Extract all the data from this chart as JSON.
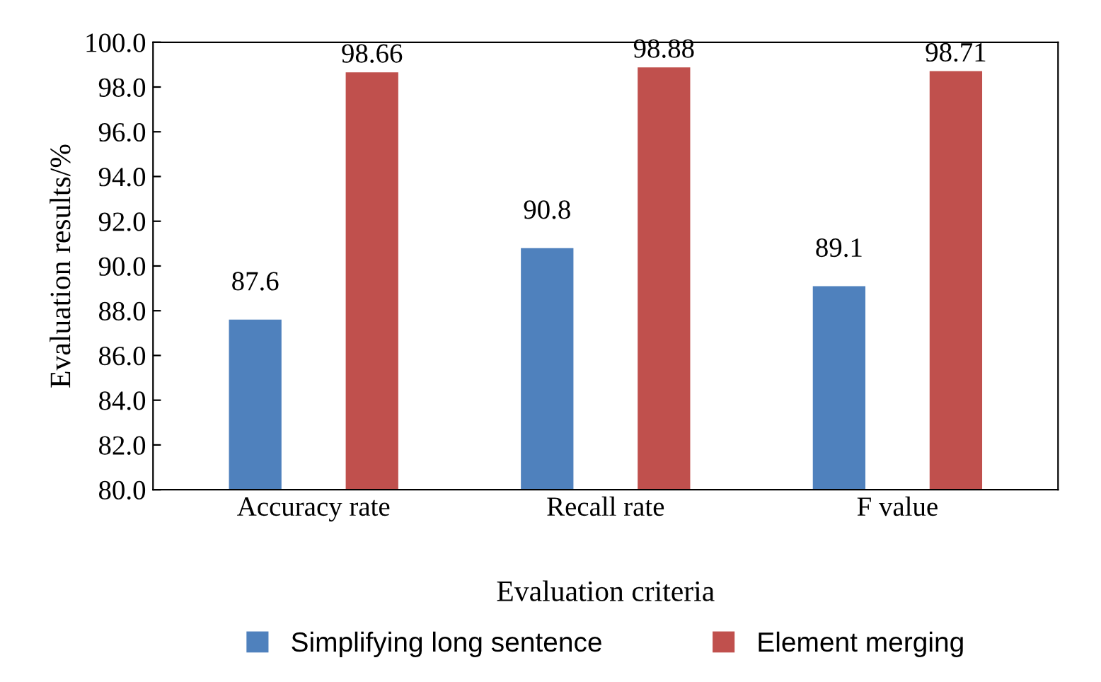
{
  "chart_data": {
    "type": "bar",
    "xlabel": "Evaluation criteria",
    "ylabel": "Evaluation results/%",
    "categories": [
      "Accuracy rate",
      "Recall rate",
      "F value"
    ],
    "series": [
      {
        "name": "Simplifying long sentence",
        "color": "#4f81bd",
        "values": [
          87.6,
          90.8,
          89.1
        ]
      },
      {
        "name": "Element merging",
        "color": "#c0504d",
        "values": [
          98.66,
          98.88,
          98.71
        ]
      }
    ],
    "ylim": [
      80,
      100
    ],
    "yticks": [
      {
        "value": 80,
        "label": "80.0"
      },
      {
        "value": 82,
        "label": "82.0"
      },
      {
        "value": 84,
        "label": "84.0"
      },
      {
        "value": 86,
        "label": "86.0"
      },
      {
        "value": 88,
        "label": "88.0"
      },
      {
        "value": 90,
        "label": "90.0"
      },
      {
        "value": 92,
        "label": "92.0"
      },
      {
        "value": 94,
        "label": "94.0"
      },
      {
        "value": 96,
        "label": "96.0"
      },
      {
        "value": 98,
        "label": "98.0"
      },
      {
        "value": 100,
        "label": "100.0"
      }
    ],
    "data_labels": true,
    "grid": false,
    "legend": "bottom"
  }
}
